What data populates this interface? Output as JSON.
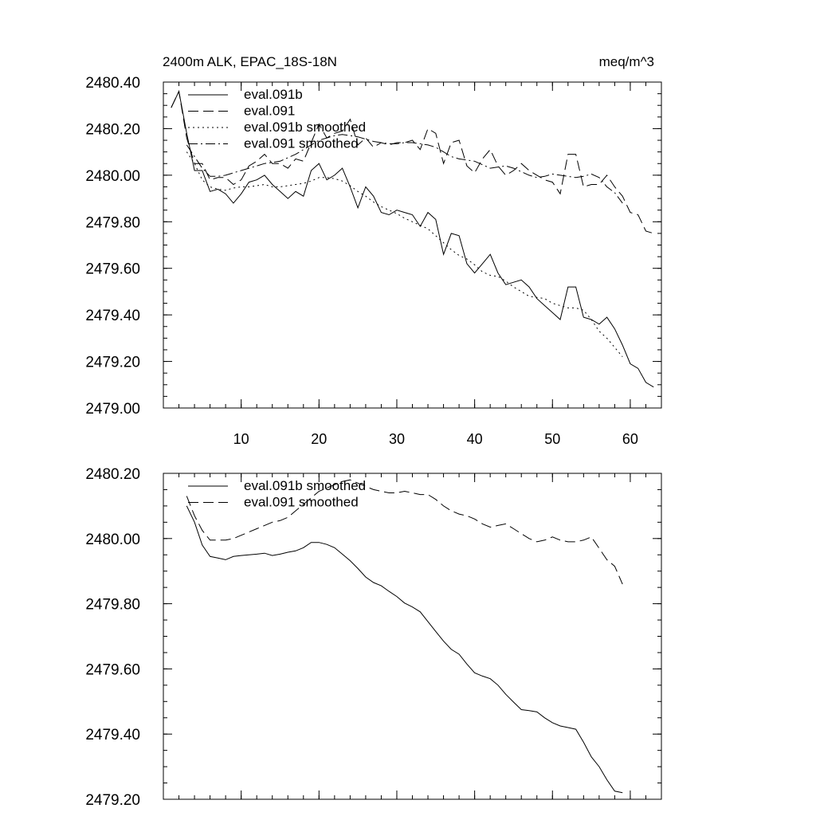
{
  "chart_data": [
    {
      "type": "line",
      "title": "2400m ALK, EPAC_18S-18N",
      "units": "meq/m^3",
      "xlim": [
        0,
        64
      ],
      "ylim": [
        2479.0,
        2480.4
      ],
      "xticks": [
        10,
        20,
        30,
        40,
        50,
        60
      ],
      "xtick_labels": [
        "10",
        "20",
        "30",
        "40",
        "50",
        "60"
      ],
      "yticks": [
        2479.0,
        2479.2,
        2479.4,
        2479.6,
        2479.8,
        2480.0,
        2480.2,
        2480.4
      ],
      "ytick_labels": [
        "2479.00",
        "2479.20",
        "2479.40",
        "2479.60",
        "2479.80",
        "2480.00",
        "2480.20",
        "2480.40"
      ],
      "legend": [
        "eval.091b",
        "eval.091",
        "eval.091b smoothed",
        "eval.091 smoothed"
      ],
      "series": [
        {
          "name": "eval.091b",
          "dash": "solid",
          "x": [
            1,
            2,
            3,
            4,
            5,
            6,
            7,
            8,
            9,
            10,
            11,
            12,
            13,
            14,
            15,
            16,
            17,
            18,
            19,
            20,
            21,
            22,
            23,
            24,
            25,
            26,
            27,
            28,
            29,
            30,
            31,
            32,
            33,
            34,
            35,
            36,
            37,
            38,
            39,
            40,
            41,
            42,
            43,
            44,
            45,
            46,
            47,
            48,
            49,
            50,
            51,
            52,
            53,
            54,
            55,
            56,
            57,
            58,
            59,
            60,
            61,
            62,
            63
          ],
          "values": [
            2480.29,
            2480.36,
            2480.18,
            2480.02,
            2480.02,
            2479.93,
            2479.94,
            2479.92,
            2479.88,
            2479.92,
            2479.97,
            2479.98,
            2480.0,
            2479.96,
            2479.93,
            2479.9,
            2479.93,
            2479.91,
            2480.02,
            2480.05,
            2479.98,
            2480.0,
            2480.03,
            2479.95,
            2479.86,
            2479.95,
            2479.91,
            2479.84,
            2479.83,
            2479.85,
            2479.84,
            2479.83,
            2479.78,
            2479.84,
            2479.81,
            2479.66,
            2479.75,
            2479.74,
            2479.62,
            2479.58,
            2479.62,
            2479.66,
            2479.58,
            2479.53,
            2479.54,
            2479.55,
            2479.52,
            2479.47,
            2479.44,
            2479.41,
            2479.38,
            2479.52,
            2479.52,
            2479.39,
            2479.38,
            2479.36,
            2479.39,
            2479.34,
            2479.27,
            2479.19,
            2479.17,
            2479.11,
            2479.09
          ]
        },
        {
          "name": "eval.091",
          "dash": "dashed",
          "x": [
            1,
            2,
            3,
            4,
            5,
            6,
            7,
            8,
            9,
            10,
            11,
            12,
            13,
            14,
            15,
            16,
            17,
            18,
            19,
            20,
            21,
            22,
            23,
            24,
            25,
            26,
            27,
            28,
            29,
            30,
            31,
            32,
            33,
            34,
            35,
            36,
            37,
            38,
            39,
            40,
            41,
            42,
            43,
            44,
            45,
            46,
            47,
            48,
            49,
            50,
            51,
            52,
            53,
            54,
            55,
            56,
            57,
            58,
            59,
            60,
            61,
            62,
            63
          ],
          "values": [
            2480.29,
            2480.36,
            2480.16,
            2480.05,
            2480.05,
            2479.98,
            2479.99,
            2479.99,
            2479.96,
            2479.98,
            2480.04,
            2480.06,
            2480.09,
            2480.05,
            2480.05,
            2480.03,
            2480.07,
            2480.06,
            2480.14,
            2480.22,
            2480.16,
            2480.18,
            2480.19,
            2480.24,
            2480.13,
            2480.16,
            2480.12,
            2480.14,
            2480.13,
            2480.14,
            2480.14,
            2480.15,
            2480.11,
            2480.2,
            2480.18,
            2480.05,
            2480.14,
            2480.15,
            2480.04,
            2480.01,
            2480.07,
            2480.11,
            2480.04,
            2480.0,
            2480.02,
            2480.05,
            2480.02,
            2480.0,
            2479.98,
            2479.97,
            2479.92,
            2480.09,
            2480.09,
            2479.95,
            2479.96,
            2479.96,
            2480.0,
            2479.95,
            2479.91,
            2479.84,
            2479.83,
            2479.76,
            2479.75
          ]
        },
        {
          "name": "eval.091b smoothed",
          "dash": "dotted",
          "x": [
            3,
            4,
            5,
            6,
            7,
            8,
            9,
            10,
            11,
            12,
            13,
            14,
            15,
            16,
            17,
            18,
            19,
            20,
            21,
            22,
            23,
            24,
            25,
            26,
            27,
            28,
            29,
            30,
            31,
            32,
            33,
            34,
            35,
            36,
            37,
            38,
            39,
            40,
            41,
            42,
            43,
            44,
            45,
            46,
            47,
            48,
            49,
            50,
            51,
            52,
            53,
            54,
            55,
            56,
            57,
            58,
            59
          ],
          "values": [
            2480.1,
            2480.05,
            2479.98,
            2479.95,
            2479.94,
            2479.935,
            2479.945,
            2479.95,
            2479.95,
            2479.955,
            2479.96,
            2479.95,
            2479.95,
            2479.955,
            2479.96,
            2479.965,
            2479.975,
            2479.99,
            2479.99,
            2479.985,
            2479.975,
            2479.955,
            2479.93,
            2479.91,
            2479.885,
            2479.865,
            2479.85,
            2479.835,
            2479.815,
            2479.8,
            2479.785,
            2479.77,
            2479.74,
            2479.71,
            2479.68,
            2479.655,
            2479.64,
            2479.615,
            2479.585,
            2479.57,
            2479.565,
            2479.545,
            2479.52,
            2479.5,
            2479.48,
            2479.475,
            2479.47,
            2479.45,
            2479.44,
            2479.43,
            2479.43,
            2479.42,
            2479.38,
            2479.33,
            2479.3,
            2479.26,
            2479.22
          ]
        },
        {
          "name": "eval.091 smoothed",
          "dash": "dashdot",
          "x": [
            3,
            4,
            5,
            6,
            7,
            8,
            9,
            10,
            11,
            12,
            13,
            14,
            15,
            16,
            17,
            18,
            19,
            20,
            21,
            22,
            23,
            24,
            25,
            26,
            27,
            28,
            29,
            30,
            31,
            32,
            33,
            34,
            35,
            36,
            37,
            38,
            39,
            40,
            41,
            42,
            43,
            44,
            45,
            46,
            47,
            48,
            49,
            50,
            51,
            52,
            53,
            54,
            55,
            56,
            57,
            58,
            59
          ],
          "values": [
            2480.13,
            2480.08,
            2480.03,
            2479.995,
            2479.995,
            2480.0,
            2480.01,
            2480.02,
            2480.03,
            2480.04,
            2480.05,
            2480.055,
            2480.06,
            2480.075,
            2480.09,
            2480.11,
            2480.13,
            2480.15,
            2480.16,
            2480.17,
            2480.175,
            2480.17,
            2480.165,
            2480.155,
            2480.145,
            2480.14,
            2480.135,
            2480.135,
            2480.14,
            2480.14,
            2480.135,
            2480.13,
            2480.12,
            2480.1,
            2480.08,
            2480.07,
            2480.065,
            2480.06,
            2480.045,
            2480.03,
            2480.035,
            2480.04,
            2480.03,
            2480.015,
            2480.0,
            2479.99,
            2479.995,
            2480.005,
            2480.0,
            2479.995,
            2479.99,
            2479.995,
            2480.005,
            2479.99,
            2479.95,
            2479.925,
            2479.88
          ]
        }
      ]
    },
    {
      "type": "line",
      "title": "",
      "xlim": [
        0,
        64
      ],
      "ylim": [
        2479.2,
        2480.2
      ],
      "xticks": [
        10,
        20,
        30,
        40,
        50,
        60
      ],
      "yticks": [
        2479.2,
        2479.4,
        2479.6,
        2479.8,
        2480.0,
        2480.2
      ],
      "ytick_labels": [
        "2479.20",
        "2479.40",
        "2479.60",
        "2479.80",
        "2480.00",
        "2480.20"
      ],
      "legend": [
        "eval.091b smoothed",
        "eval.091 smoothed"
      ],
      "series": [
        {
          "name": "eval.091b smoothed",
          "dash": "solid",
          "x": [
            3,
            4,
            5,
            6,
            7,
            8,
            9,
            10,
            11,
            12,
            13,
            14,
            15,
            16,
            17,
            18,
            19,
            20,
            21,
            22,
            23,
            24,
            25,
            26,
            27,
            28,
            29,
            30,
            31,
            32,
            33,
            34,
            35,
            36,
            37,
            38,
            39,
            40,
            41,
            42,
            43,
            44,
            45,
            46,
            47,
            48,
            49,
            50,
            51,
            52,
            53,
            54,
            55,
            56,
            57,
            58,
            59
          ],
          "values": [
            2480.1,
            2480.05,
            2479.98,
            2479.945,
            2479.94,
            2479.935,
            2479.945,
            2479.948,
            2479.95,
            2479.952,
            2479.955,
            2479.948,
            2479.952,
            2479.958,
            2479.962,
            2479.972,
            2479.988,
            2479.988,
            2479.982,
            2479.972,
            2479.952,
            2479.932,
            2479.908,
            2479.882,
            2479.865,
            2479.855,
            2479.838,
            2479.822,
            2479.802,
            2479.79,
            2479.775,
            2479.745,
            2479.715,
            2479.685,
            2479.66,
            2479.645,
            2479.615,
            2479.588,
            2479.578,
            2479.57,
            2479.55,
            2479.522,
            2479.498,
            2479.475,
            2479.472,
            2479.468,
            2479.45,
            2479.435,
            2479.425,
            2479.42,
            2479.415,
            2479.375,
            2479.33,
            2479.3,
            2479.26,
            2479.225,
            2479.22
          ]
        },
        {
          "name": "eval.091 smoothed",
          "dash": "dashed",
          "x": [
            3,
            4,
            5,
            6,
            7,
            8,
            9,
            10,
            11,
            12,
            13,
            14,
            15,
            16,
            17,
            18,
            19,
            20,
            21,
            22,
            23,
            24,
            25,
            26,
            27,
            28,
            29,
            30,
            31,
            32,
            33,
            34,
            35,
            36,
            37,
            38,
            39,
            40,
            41,
            42,
            43,
            44,
            45,
            46,
            47,
            48,
            49,
            50,
            51,
            52,
            53,
            54,
            55,
            56,
            57,
            58,
            59
          ],
          "values": [
            2480.13,
            2480.07,
            2480.025,
            2479.995,
            2479.995,
            2479.995,
            2480.0,
            2480.01,
            2480.02,
            2480.03,
            2480.04,
            2480.05,
            2480.055,
            2480.065,
            2480.085,
            2480.105,
            2480.125,
            2480.145,
            2480.155,
            2480.165,
            2480.175,
            2480.18,
            2480.17,
            2480.16,
            2480.15,
            2480.145,
            2480.14,
            2480.14,
            2480.145,
            2480.14,
            2480.135,
            2480.135,
            2480.12,
            2480.1,
            2480.085,
            2480.075,
            2480.07,
            2480.06,
            2480.045,
            2480.035,
            2480.04,
            2480.045,
            2480.03,
            2480.015,
            2480.0,
            2479.99,
            2479.995,
            2480.005,
            2479.995,
            2479.99,
            2479.99,
            2479.995,
            2480.005,
            2479.97,
            2479.935,
            2479.915,
            2479.86
          ]
        }
      ]
    }
  ]
}
